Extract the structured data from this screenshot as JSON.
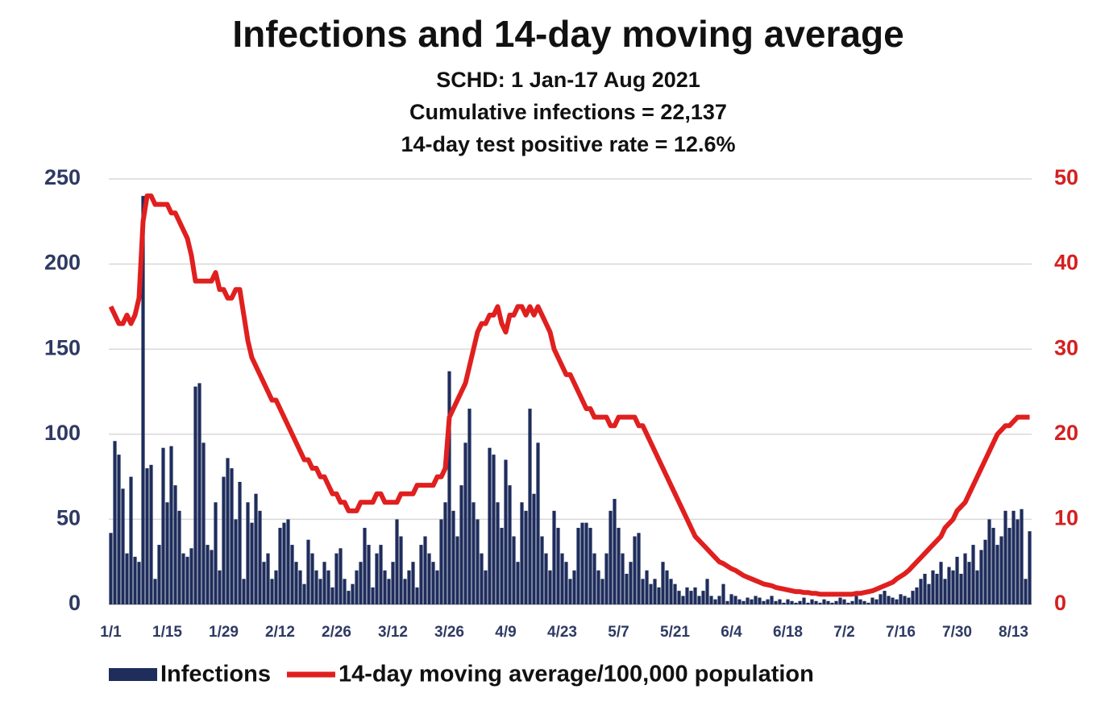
{
  "chart_data": {
    "type": "bar_line",
    "title": "Infections and 14-day moving average",
    "subtitle": [
      "SCHD: 1 Jan-17 Aug 2021",
      "Cumulative infections = 22,137",
      "14-day test positive rate = 12.6%"
    ],
    "categories": [
      "1/1",
      null,
      null,
      null,
      null,
      null,
      null,
      null,
      null,
      null,
      null,
      null,
      null,
      null,
      "1/15",
      null,
      null,
      null,
      null,
      null,
      null,
      null,
      null,
      null,
      null,
      null,
      null,
      null,
      "1/29",
      null,
      null,
      null,
      null,
      null,
      null,
      null,
      null,
      null,
      null,
      null,
      null,
      null,
      "2/12",
      null,
      null,
      null,
      null,
      null,
      null,
      null,
      null,
      null,
      null,
      null,
      null,
      null,
      "2/26",
      null,
      null,
      null,
      null,
      null,
      null,
      null,
      null,
      null,
      null,
      null,
      null,
      null,
      "3/12",
      null,
      null,
      null,
      null,
      null,
      null,
      null,
      null,
      null,
      null,
      null,
      null,
      null,
      "3/26",
      null,
      null,
      null,
      null,
      null,
      null,
      null,
      null,
      null,
      null,
      null,
      null,
      null,
      "4/9",
      null,
      null,
      null,
      null,
      null,
      null,
      null,
      null,
      null,
      null,
      null,
      null,
      null,
      "4/23",
      null,
      null,
      null,
      null,
      null,
      null,
      null,
      null,
      null,
      null,
      null,
      null,
      null,
      "5/7",
      null,
      null,
      null,
      null,
      null,
      null,
      null,
      null,
      null,
      null,
      null,
      null,
      null,
      "5/21",
      null,
      null,
      null,
      null,
      null,
      null,
      null,
      null,
      null,
      null,
      null,
      null,
      null,
      "6/4",
      null,
      null,
      null,
      null,
      null,
      null,
      null,
      null,
      null,
      null,
      null,
      null,
      null,
      "6/18",
      null,
      null,
      null,
      null,
      null,
      null,
      null,
      null,
      null,
      null,
      null,
      null,
      null,
      "7/2",
      null,
      null,
      null,
      null,
      null,
      null,
      null,
      null,
      null,
      null,
      null,
      null,
      null,
      "7/16",
      null,
      null,
      null,
      null,
      null,
      null,
      null,
      null,
      null,
      null,
      null,
      null,
      null,
      "7/30",
      null,
      null,
      null,
      null,
      null,
      null,
      null,
      null,
      null,
      null,
      null,
      null,
      null,
      "8/13",
      null,
      null,
      null,
      null
    ],
    "series": [
      {
        "name": "Infections",
        "type": "bar",
        "color": "#1f2d5c",
        "values": [
          42,
          96,
          88,
          68,
          30,
          75,
          28,
          25,
          240,
          80,
          82,
          15,
          35,
          92,
          60,
          93,
          70,
          55,
          30,
          28,
          33,
          128,
          130,
          95,
          35,
          32,
          60,
          20,
          75,
          86,
          80,
          50,
          72,
          15,
          60,
          48,
          65,
          55,
          25,
          30,
          15,
          20,
          45,
          48,
          50,
          35,
          25,
          20,
          12,
          38,
          30,
          20,
          15,
          25,
          20,
          10,
          30,
          33,
          15,
          8,
          12,
          20,
          25,
          45,
          35,
          10,
          30,
          35,
          20,
          15,
          25,
          50,
          40,
          15,
          20,
          25,
          10,
          35,
          40,
          30,
          25,
          20,
          50,
          60,
          137,
          55,
          40,
          70,
          95,
          115,
          60,
          50,
          30,
          20,
          92,
          88,
          60,
          45,
          85,
          70,
          40,
          25,
          60,
          55,
          115,
          65,
          95,
          40,
          30,
          20,
          55,
          45,
          30,
          25,
          15,
          20,
          45,
          48,
          48,
          45,
          30,
          20,
          15,
          30,
          55,
          62,
          45,
          30,
          18,
          25,
          40,
          42,
          15,
          20,
          12,
          15,
          10,
          25,
          20,
          15,
          12,
          8,
          5,
          10,
          8,
          10,
          5,
          8,
          15,
          5,
          3,
          5,
          12,
          2,
          6,
          5,
          3,
          2,
          4,
          3,
          5,
          4,
          2,
          3,
          5,
          2,
          3,
          1,
          3,
          2,
          1,
          2,
          4,
          1,
          3,
          2,
          1,
          3,
          2,
          1,
          2,
          4,
          3,
          1,
          2,
          5,
          3,
          2,
          1,
          4,
          3,
          6,
          8,
          5,
          4,
          3,
          6,
          5,
          4,
          8,
          10,
          15,
          18,
          12,
          20,
          18,
          25,
          15,
          22,
          20,
          28,
          18,
          30,
          25,
          35,
          20,
          32,
          38,
          50,
          45,
          35,
          40,
          55,
          45,
          55,
          50,
          56,
          15,
          43
        ]
      },
      {
        "name": "14-day moving average/100,000 population",
        "type": "line",
        "axis": "y2",
        "color": "#e01f1f",
        "values": [
          35,
          34,
          33,
          33,
          34,
          33,
          34,
          36,
          45,
          48,
          48,
          47,
          47,
          47,
          47,
          46,
          46,
          45,
          44,
          43,
          41,
          38,
          38,
          38,
          38,
          38,
          39,
          37,
          37,
          36,
          36,
          37,
          37,
          34,
          31,
          29,
          28,
          27,
          26,
          25,
          24,
          24,
          23,
          22,
          21,
          20,
          19,
          18,
          17,
          17,
          16,
          16,
          15,
          15,
          14,
          13,
          13,
          12,
          12,
          11,
          11,
          11,
          12,
          12,
          12,
          12,
          13,
          13,
          12,
          12,
          12,
          12,
          13,
          13,
          13,
          13,
          14,
          14,
          14,
          14,
          14,
          15,
          15,
          16,
          22,
          23,
          24,
          25,
          26,
          28,
          30,
          32,
          33,
          33,
          34,
          34,
          35,
          33,
          32,
          34,
          34,
          35,
          35,
          34,
          35,
          34,
          35,
          34,
          33,
          32,
          30,
          29,
          28,
          27,
          27,
          26,
          25,
          24,
          23,
          23,
          22,
          22,
          22,
          22,
          21,
          21,
          22,
          22,
          22,
          22,
          22,
          21,
          21,
          20,
          19,
          18,
          17,
          16,
          15,
          14,
          13,
          12,
          11,
          10,
          9,
          8,
          7.5,
          7,
          6.5,
          6,
          5.5,
          5,
          4.8,
          4.5,
          4.2,
          4,
          3.7,
          3.4,
          3.2,
          3,
          2.8,
          2.6,
          2.4,
          2.3,
          2.2,
          2,
          1.9,
          1.8,
          1.7,
          1.6,
          1.5,
          1.5,
          1.4,
          1.4,
          1.3,
          1.3,
          1.2,
          1.2,
          1.2,
          1.2,
          1.2,
          1.2,
          1.2,
          1.2,
          1.2,
          1.3,
          1.3,
          1.4,
          1.5,
          1.6,
          1.8,
          2,
          2.2,
          2.4,
          2.6,
          3,
          3.3,
          3.6,
          4,
          4.5,
          5,
          5.5,
          6,
          6.5,
          7,
          7.5,
          8,
          9,
          9.5,
          10,
          11,
          11.5,
          12,
          13,
          14,
          15,
          16,
          17,
          18,
          19,
          20,
          20.5,
          21,
          21,
          21.5,
          22,
          22,
          22,
          22
        ]
      }
    ],
    "ylim": [
      0,
      250
    ],
    "yticks": [
      0,
      50,
      100,
      150,
      200,
      250
    ],
    "y2lim": [
      0,
      50
    ],
    "y2ticks": [
      0,
      10,
      20,
      30,
      40,
      50
    ],
    "grid": true
  }
}
